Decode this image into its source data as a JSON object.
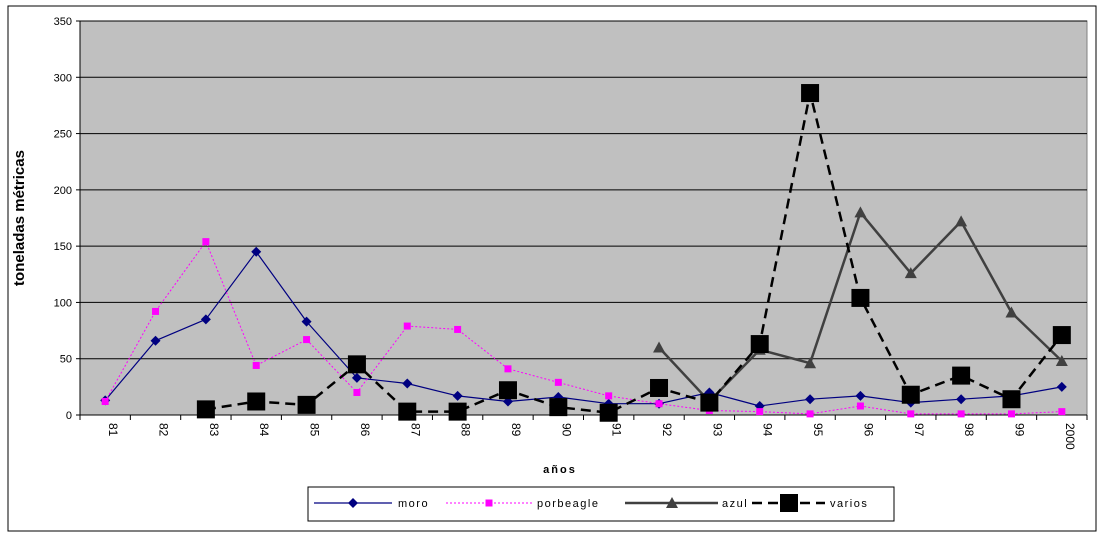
{
  "chart_data": {
    "type": "line",
    "title": "",
    "xlabel": "años",
    "ylabel": "toneladas métricas",
    "ylim": [
      0,
      350
    ],
    "yticks": [
      0,
      50,
      100,
      150,
      200,
      250,
      300,
      350
    ],
    "categories": [
      "81",
      "82",
      "83",
      "84",
      "85",
      "86",
      "87",
      "88",
      "89",
      "90",
      "91",
      "92",
      "93",
      "94",
      "95",
      "96",
      "97",
      "98",
      "99",
      "2000"
    ],
    "grid": true,
    "legend_position": "bottom",
    "plot_background": "#c0c0c0",
    "series": [
      {
        "name": "moro",
        "color": "#000080",
        "style": "solid",
        "marker": "diamond",
        "values": [
          13,
          66,
          85,
          145,
          83,
          33,
          28,
          17,
          12,
          16,
          10,
          10,
          20,
          8,
          14,
          17,
          11,
          14,
          17,
          25
        ]
      },
      {
        "name": "porbeagle",
        "color": "#ff00ff",
        "style": "dotted",
        "marker": "square",
        "values": [
          12,
          92,
          154,
          44,
          67,
          20,
          79,
          76,
          41,
          29,
          17,
          10,
          4,
          3,
          1,
          8,
          1,
          1,
          1,
          3
        ]
      },
      {
        "name": "azul",
        "color": "#404040",
        "style": "solid",
        "marker": "triangle",
        "values": [
          null,
          null,
          null,
          null,
          null,
          null,
          null,
          null,
          null,
          null,
          null,
          60,
          12,
          58,
          46,
          180,
          126,
          172,
          91,
          48
        ]
      },
      {
        "name": "varios",
        "color": "#000000",
        "style": "dashed",
        "marker": "bigsquare",
        "values": [
          null,
          null,
          5,
          12,
          9,
          45,
          3,
          3,
          22,
          7,
          2,
          24,
          11,
          63,
          286,
          104,
          18,
          35,
          14,
          71
        ]
      }
    ]
  }
}
